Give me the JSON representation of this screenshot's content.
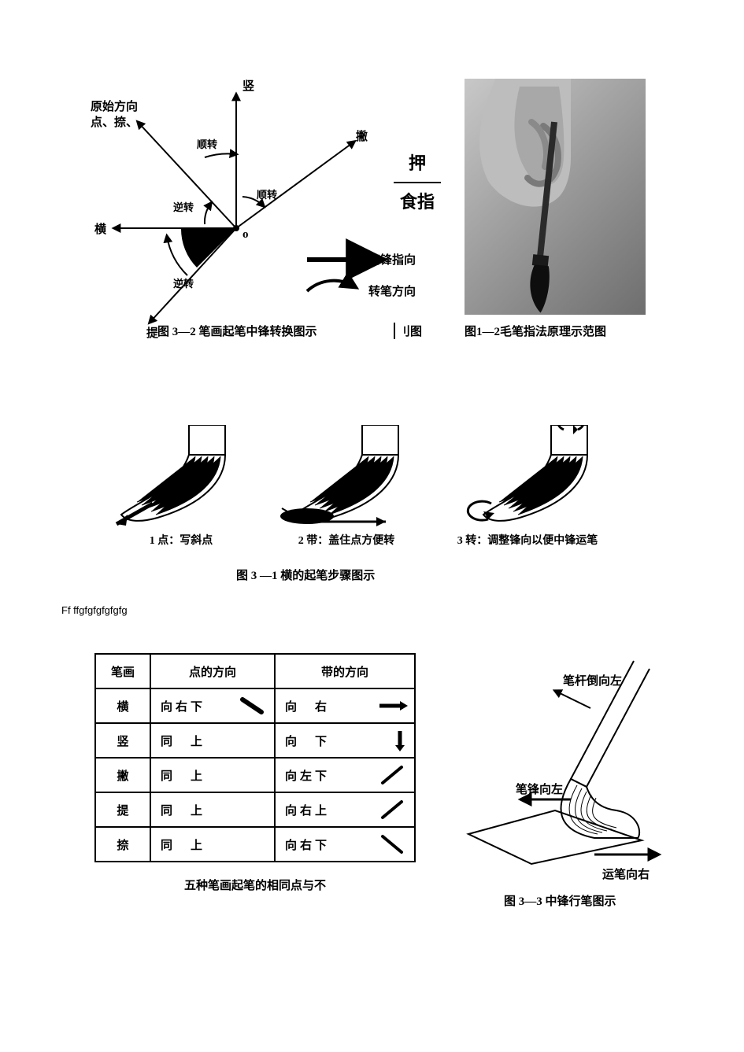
{
  "colors": {
    "ink": "#000000",
    "paper": "#ffffff",
    "photo_light": "#c8c8c8",
    "photo_mid": "#9a9a9a",
    "photo_dark": "#6e6e6e"
  },
  "fig32": {
    "caption": "图 3—2 笔画起笔中锋转换图示",
    "litu_partial": "刂图",
    "origin_label": "o",
    "axes": {
      "up": {
        "label": "竖",
        "angle_deg": 90
      },
      "right_up": {
        "label": "撇",
        "angle_deg": 35
      },
      "left": {
        "label": "横",
        "angle_deg": 180
      },
      "left_down": {
        "label": "提",
        "angle_deg": 225
      },
      "left_up_far": {
        "label": "原始方向",
        "note": "点、捺、",
        "angle_deg": 135
      }
    },
    "arc_labels": {
      "cw1": "顺转",
      "cw2": "顺转",
      "ccw1": "逆转",
      "ccw2": "逆转"
    },
    "legend": {
      "tip_direction": "笔锋指向",
      "rotate_direction": "转笔方向"
    },
    "side_annotation": {
      "top": "押",
      "bottom": "食指"
    }
  },
  "photo": {
    "caption": "图1—2毛笔指法原理示范图"
  },
  "steps": {
    "items": [
      {
        "label": "1 点：写斜点"
      },
      {
        "label": "2 带：盖住点方便转"
      },
      {
        "label": "3 转：调整锋向以便中锋运笔"
      }
    ],
    "caption": "图 3 —1 横的起笔步骤图示"
  },
  "stray_text": "Ff ffgfgfgfgfgfg",
  "table": {
    "headers": [
      "笔画",
      "点的方向",
      "带的方向"
    ],
    "rows": [
      {
        "stroke": "横",
        "dot_dir": "向右下",
        "dot_glyph": "diag-down-thick",
        "band_dir": "向　右",
        "band_glyph": "arrow-right"
      },
      {
        "stroke": "竖",
        "dot_dir": "同　上",
        "dot_glyph": "none",
        "band_dir": "向　下",
        "band_glyph": "arrow-down"
      },
      {
        "stroke": "撇",
        "dot_dir": "同　上",
        "dot_glyph": "none",
        "band_dir": "向左下",
        "band_glyph": "diag-down-left"
      },
      {
        "stroke": "提",
        "dot_dir": "同　上",
        "dot_glyph": "none",
        "band_dir": "向右上",
        "band_glyph": "diag-up-right"
      },
      {
        "stroke": "捺",
        "dot_dir": "同　上",
        "dot_glyph": "none",
        "band_dir": "向右下",
        "band_glyph": "diag-down-right"
      }
    ],
    "caption": "五种笔画起笔的相同点与不"
  },
  "fig33": {
    "labels": {
      "shaft_left": "笔杆倒向左",
      "tip_left": "笔锋向左",
      "move_right": "运笔向右"
    },
    "caption": "图 3—3 中锋行笔图示"
  }
}
